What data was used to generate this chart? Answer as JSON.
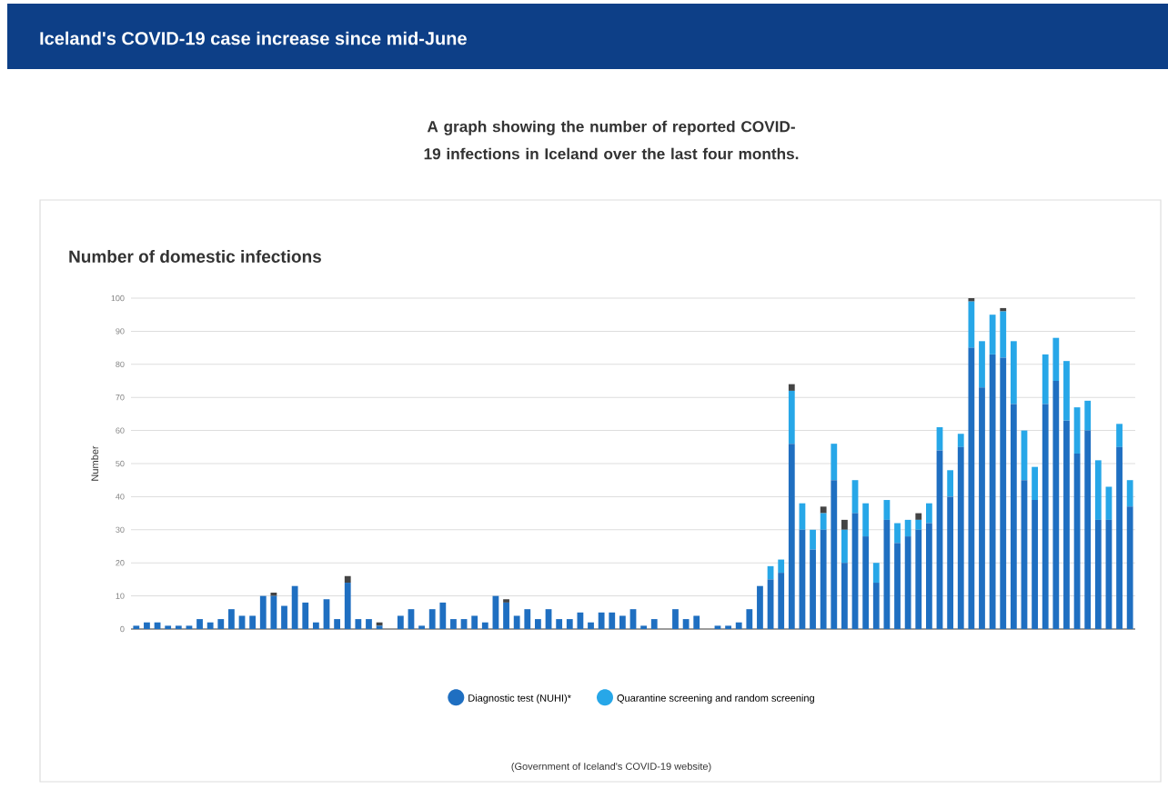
{
  "chart_data": {
    "type": "bar",
    "stacked": true,
    "title": "Iceland's COVID-19 case increase since mid-June",
    "subtitle": "A graph showing the number of reported COVID-19 infections in Iceland over the last four months.",
    "annotations": [
      "Number of domestic infections",
      "(Government of Iceland's COVID-19 website)"
    ],
    "ylabel": "Number",
    "categories": [
      null,
      null,
      null,
      null,
      null,
      null,
      null,
      null,
      null,
      null,
      null,
      null,
      null,
      null,
      null,
      null,
      null,
      null,
      null,
      null,
      null,
      null,
      null,
      null,
      null,
      null,
      null,
      null,
      null,
      null,
      null,
      null,
      null,
      null,
      null,
      null,
      null,
      null,
      null,
      null,
      null,
      null,
      null,
      null,
      null,
      null,
      null,
      null,
      null,
      null,
      null,
      null,
      null,
      null,
      null,
      null,
      null,
      null,
      null,
      null,
      null,
      null,
      null,
      null,
      null,
      null,
      null,
      null,
      null,
      null,
      null,
      null,
      null,
      null,
      null,
      null,
      null,
      null,
      null,
      null,
      null,
      null,
      null,
      null,
      null,
      null,
      null,
      null,
      null,
      null,
      null,
      null,
      null,
      null,
      null
    ],
    "series": [
      {
        "name": "Diagnostic test (NUHI)*",
        "color": "#1f6fc1",
        "values": [
          1,
          2,
          2,
          1,
          1,
          1,
          3,
          2,
          3,
          6,
          4,
          4,
          10,
          10,
          7,
          13,
          8,
          2,
          9,
          3,
          14,
          3,
          3,
          1,
          0,
          4,
          6,
          1,
          6,
          8,
          3,
          3,
          4,
          2,
          10,
          8,
          4,
          6,
          3,
          6,
          3,
          3,
          5,
          2,
          5,
          5,
          4,
          6,
          1,
          3,
          0,
          6,
          3,
          4,
          0,
          1,
          1,
          2,
          6,
          13,
          15,
          17,
          56,
          30,
          24,
          30,
          45,
          20,
          35,
          28,
          14,
          33,
          26,
          28,
          30,
          32,
          54,
          40,
          55,
          85,
          73,
          83,
          82,
          68,
          45,
          39,
          68,
          75,
          63,
          53,
          60,
          33,
          33,
          55,
          37
        ]
      },
      {
        "name": "Quarantine screening and random screening",
        "color": "#27a7e8",
        "values": [
          0,
          0,
          0,
          0,
          0,
          0,
          0,
          0,
          0,
          0,
          0,
          0,
          0,
          0,
          0,
          0,
          0,
          0,
          0,
          0,
          0,
          0,
          0,
          0,
          0,
          0,
          0,
          0,
          0,
          0,
          0,
          0,
          0,
          0,
          0,
          0,
          0,
          0,
          0,
          0,
          0,
          0,
          0,
          0,
          0,
          0,
          0,
          0,
          0,
          0,
          0,
          0,
          0,
          0,
          0,
          0,
          0,
          0,
          0,
          0,
          4,
          4,
          16,
          8,
          6,
          5,
          11,
          10,
          10,
          10,
          6,
          6,
          6,
          5,
          3,
          6,
          7,
          8,
          4,
          14,
          14,
          12,
          14,
          19,
          15,
          10,
          15,
          13,
          18,
          14,
          9,
          18,
          10,
          7,
          8
        ]
      },
      {
        "color": "#444444",
        "values": [
          0,
          0,
          0,
          0,
          0,
          0,
          0,
          0,
          0,
          0,
          0,
          0,
          0,
          1,
          0,
          0,
          0,
          0,
          0,
          0,
          2,
          0,
          0,
          1,
          0,
          0,
          0,
          0,
          0,
          0,
          0,
          0,
          0,
          0,
          0,
          1,
          0,
          0,
          0,
          0,
          0,
          0,
          0,
          0,
          0,
          0,
          0,
          0,
          0,
          0,
          0,
          0,
          0,
          0,
          0,
          0,
          0,
          0,
          0,
          0,
          0,
          0,
          2,
          0,
          0,
          2,
          0,
          3,
          0,
          0,
          0,
          0,
          0,
          0,
          2,
          0,
          0,
          0,
          0,
          1,
          0,
          0,
          1,
          0,
          0,
          0,
          0,
          0,
          0,
          0,
          0,
          0,
          0,
          0,
          0
        ]
      }
    ],
    "ylim": [
      0,
      100
    ],
    "yticks": [
      0,
      10,
      20,
      30,
      40,
      50,
      60,
      70,
      80,
      90,
      100
    ],
    "grid": "y",
    "legend": "bottom"
  }
}
